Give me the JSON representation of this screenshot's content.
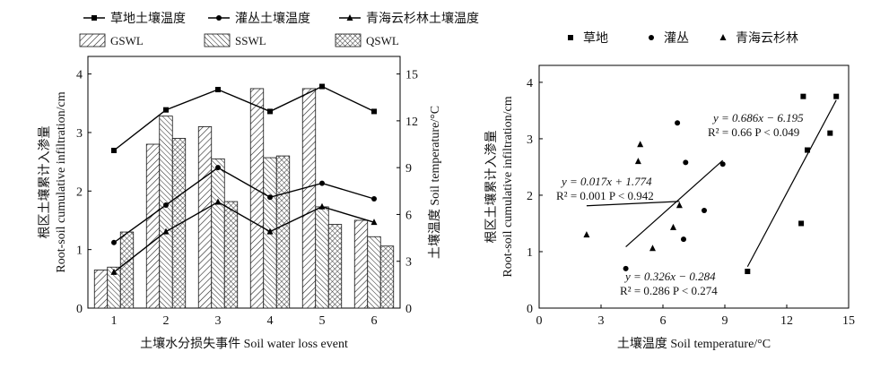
{
  "chart_data": [
    {
      "type": "bar",
      "categories": [
        "1",
        "2",
        "3",
        "4",
        "5",
        "6"
      ],
      "xlabel": "土壤水分损失事件 Soil water loss event",
      "ylabel_cn": "根区土壤累计入渗量",
      "ylabel_en": "Root-soil cumulative infiltration/cm",
      "y2label": "土壤温度 Soil temperature/°C",
      "ylim": [
        0,
        4.3
      ],
      "y2lim": [
        0,
        16.125
      ],
      "yticks": [
        "0",
        "1",
        "2",
        "3",
        "4"
      ],
      "y2ticks": [
        "0",
        "3",
        "6",
        "9",
        "12",
        "15"
      ],
      "series": [
        {
          "name": "GSWL",
          "kind": "bar",
          "pattern": "diag-right",
          "values": [
            0.65,
            2.8,
            3.1,
            3.75,
            3.75,
            1.5
          ]
        },
        {
          "name": "SSWL",
          "kind": "bar",
          "pattern": "diag-left",
          "values": [
            0.7,
            3.28,
            2.55,
            2.57,
            1.73,
            1.22
          ]
        },
        {
          "name": "QSWL",
          "kind": "bar",
          "pattern": "crosshatch",
          "values": [
            1.3,
            2.9,
            1.82,
            2.6,
            1.43,
            1.06
          ]
        }
      ],
      "line_series": [
        {
          "name": "草地土壤温度",
          "marker": "square",
          "values": [
            10.1,
            12.7,
            14.0,
            12.6,
            14.2,
            12.6
          ]
        },
        {
          "name": "灌丛土壤温度",
          "marker": "circle",
          "values": [
            4.2,
            6.6,
            9.0,
            7.1,
            8.0,
            7.0
          ]
        },
        {
          "name": "青海云杉林土壤温度",
          "marker": "triangle",
          "values": [
            2.3,
            4.9,
            6.8,
            4.9,
            6.5,
            5.5
          ]
        }
      ]
    },
    {
      "type": "scatter",
      "xlabel": "土壤温度 Soil temperature/°C",
      "ylabel_cn": "根区土壤累计入渗量",
      "ylabel_en": "Root-soil cumulative infiltration/cm",
      "xlim": [
        0,
        15
      ],
      "ylim": [
        0,
        4.3
      ],
      "xticks": [
        "0",
        "3",
        "6",
        "9",
        "12",
        "15"
      ],
      "yticks": [
        "0",
        "1",
        "2",
        "3",
        "4"
      ],
      "series": [
        {
          "name": "草地",
          "marker": "square",
          "points": [
            [
              10.1,
              0.65
            ],
            [
              12.7,
              1.5
            ],
            [
              13.0,
              2.8
            ],
            [
              14.1,
              3.1
            ],
            [
              12.8,
              3.75
            ],
            [
              14.4,
              3.75
            ]
          ]
        },
        {
          "name": "灌丛",
          "marker": "circle",
          "points": [
            [
              4.2,
              0.7
            ],
            [
              6.7,
              3.28
            ],
            [
              7.1,
              2.58
            ],
            [
              8.9,
              2.55
            ],
            [
              8.0,
              1.73
            ],
            [
              7.0,
              1.22
            ]
          ]
        },
        {
          "name": "青海云杉林",
          "marker": "triangle",
          "points": [
            [
              2.3,
              1.3
            ],
            [
              4.9,
              2.9
            ],
            [
              4.8,
              2.6
            ],
            [
              6.8,
              1.82
            ],
            [
              6.5,
              1.43
            ],
            [
              5.5,
              1.06
            ]
          ]
        }
      ],
      "fits": [
        {
          "series": "草地",
          "slope": 0.686,
          "intercept": -6.195,
          "x_range": [
            10.1,
            14.4
          ]
        },
        {
          "series": "灌丛",
          "slope": 0.326,
          "intercept": -0.284,
          "x_range": [
            4.2,
            8.9
          ]
        },
        {
          "series": "青海云杉林",
          "slope": 0.017,
          "intercept": 1.774,
          "x_range": [
            2.3,
            6.8
          ]
        }
      ],
      "annotations": [
        {
          "eq": "y = 0.686x − 6.195",
          "stat": "R² = 0.66   P < 0.049"
        },
        {
          "eq": "y = 0.017x + 1.774",
          "stat": "R² = 0.001   P < 0.942"
        },
        {
          "eq": "y = 0.326x − 0.284",
          "stat": "R² = 0.286   P < 0.274"
        }
      ]
    }
  ]
}
